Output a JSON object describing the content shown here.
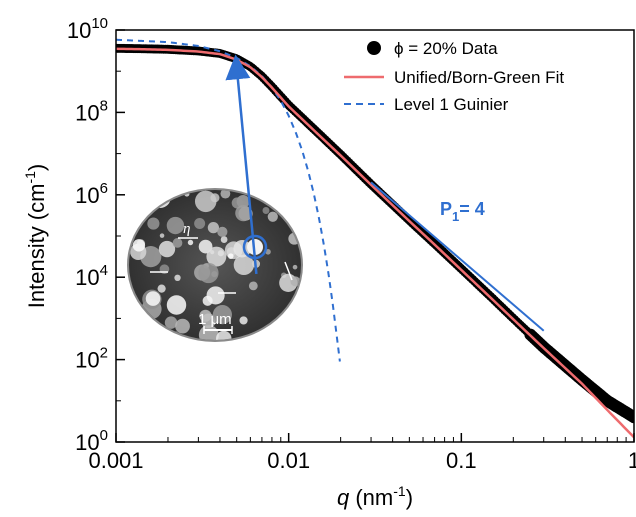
{
  "chart_data": {
    "type": "line",
    "x_scale": "log",
    "y_scale": "log",
    "xlim": [
      0.001,
      1
    ],
    "ylim": [
      1,
      10000000000
    ],
    "x_ticks": [
      0.001,
      0.01,
      0.1,
      1
    ],
    "x_tick_labels": [
      "0.001",
      "0.01",
      "0.1",
      "1"
    ],
    "y_ticks": [
      1,
      100,
      10000,
      1000000,
      100000000,
      10000000000
    ],
    "y_tick_labels": [
      {
        "base": "10",
        "exp": "0"
      },
      {
        "base": "10",
        "exp": "2"
      },
      {
        "base": "10",
        "exp": "4"
      },
      {
        "base": "10",
        "exp": "6"
      },
      {
        "base": "10",
        "exp": "8"
      },
      {
        "base": "10",
        "exp": "10"
      }
    ],
    "xlabel": {
      "var": "q",
      "unit_prefix": " (nm",
      "unit_exp": "-1",
      "unit_suffix": ")"
    },
    "ylabel": {
      "prefix": "Intensity (cm",
      "exp": "-1",
      "suffix": ")"
    },
    "legend_position": "top-right",
    "legend": [
      {
        "key": "data",
        "text": "ϕ = 20% Data"
      },
      {
        "key": "fit",
        "text": "Unified/Born-Green Fit"
      },
      {
        "key": "guinier",
        "text": "Level 1 Guinier"
      }
    ],
    "series": [
      {
        "name": "ϕ = 20% Data",
        "style": "markers",
        "color": "#000000",
        "x": [
          0.001,
          0.0015,
          0.002,
          0.003,
          0.004,
          0.005,
          0.006,
          0.007,
          0.008,
          0.01,
          0.015,
          0.02,
          0.03,
          0.05,
          0.07,
          0.1,
          0.15,
          0.2,
          0.3,
          0.5,
          0.7,
          1.0
        ],
        "y": [
          3600000000,
          3500000000,
          3400000000,
          3100000000,
          2700000000,
          2000000000,
          1300000000,
          750000000,
          420000000,
          150000000,
          30000000,
          9500000,
          1800000,
          240000,
          65000,
          16000,
          3200,
          1000,
          200,
          32,
          10,
          4
        ]
      },
      {
        "name": "Unified/Born-Green Fit",
        "style": "line",
        "color": "#ee6b6e",
        "x": [
          0.001,
          0.0015,
          0.002,
          0.003,
          0.004,
          0.005,
          0.006,
          0.007,
          0.008,
          0.01,
          0.015,
          0.02,
          0.03,
          0.05,
          0.07,
          0.1,
          0.15,
          0.2,
          0.3,
          0.5,
          0.7,
          1.0
        ],
        "y": [
          3500000000,
          3400000000,
          3300000000,
          3000000000,
          2600000000,
          1900000000,
          1250000000,
          720000000,
          400000000,
          140000000,
          28000000,
          9000000,
          1750000,
          230000,
          62000,
          15000,
          3000,
          950,
          190,
          26,
          6,
          1.3
        ]
      },
      {
        "name": "Level 1 Guinier",
        "style": "dashed",
        "color": "#2f6fd0",
        "x": [
          0.001,
          0.002,
          0.003,
          0.004,
          0.005,
          0.006,
          0.007,
          0.008,
          0.009,
          0.01,
          0.011,
          0.012,
          0.013,
          0.014,
          0.015,
          0.016,
          0.017,
          0.018,
          0.019,
          0.0198
        ],
        "y": [
          5800000000,
          5080000000,
          4100000000,
          3050000000,
          2100000000,
          1320000000,
          760000000,
          400000000,
          192000000,
          83000000,
          32500000,
          11500000,
          3650000,
          1040000,
          265000,
          60000,
          12300,
          2250,
          365,
          90
        ]
      }
    ],
    "annotations": {
      "slope_label": {
        "base": "P",
        "sub": "1",
        "rest": "= 4"
      },
      "slope_line": {
        "x": [
          0.03,
          0.3
        ],
        "y": [
          2000000,
          500
        ]
      },
      "callout_arrow": {
        "from_x": 0.0065,
        "from_y": 12000,
        "to_x": 0.005,
        "to_y": 2000000000
      },
      "inset": {
        "type": "micrograph",
        "labels": [
          {
            "key": "eta",
            "text": "η"
          },
          {
            "key": "scale",
            "text": "1 μm"
          }
        ]
      }
    }
  }
}
